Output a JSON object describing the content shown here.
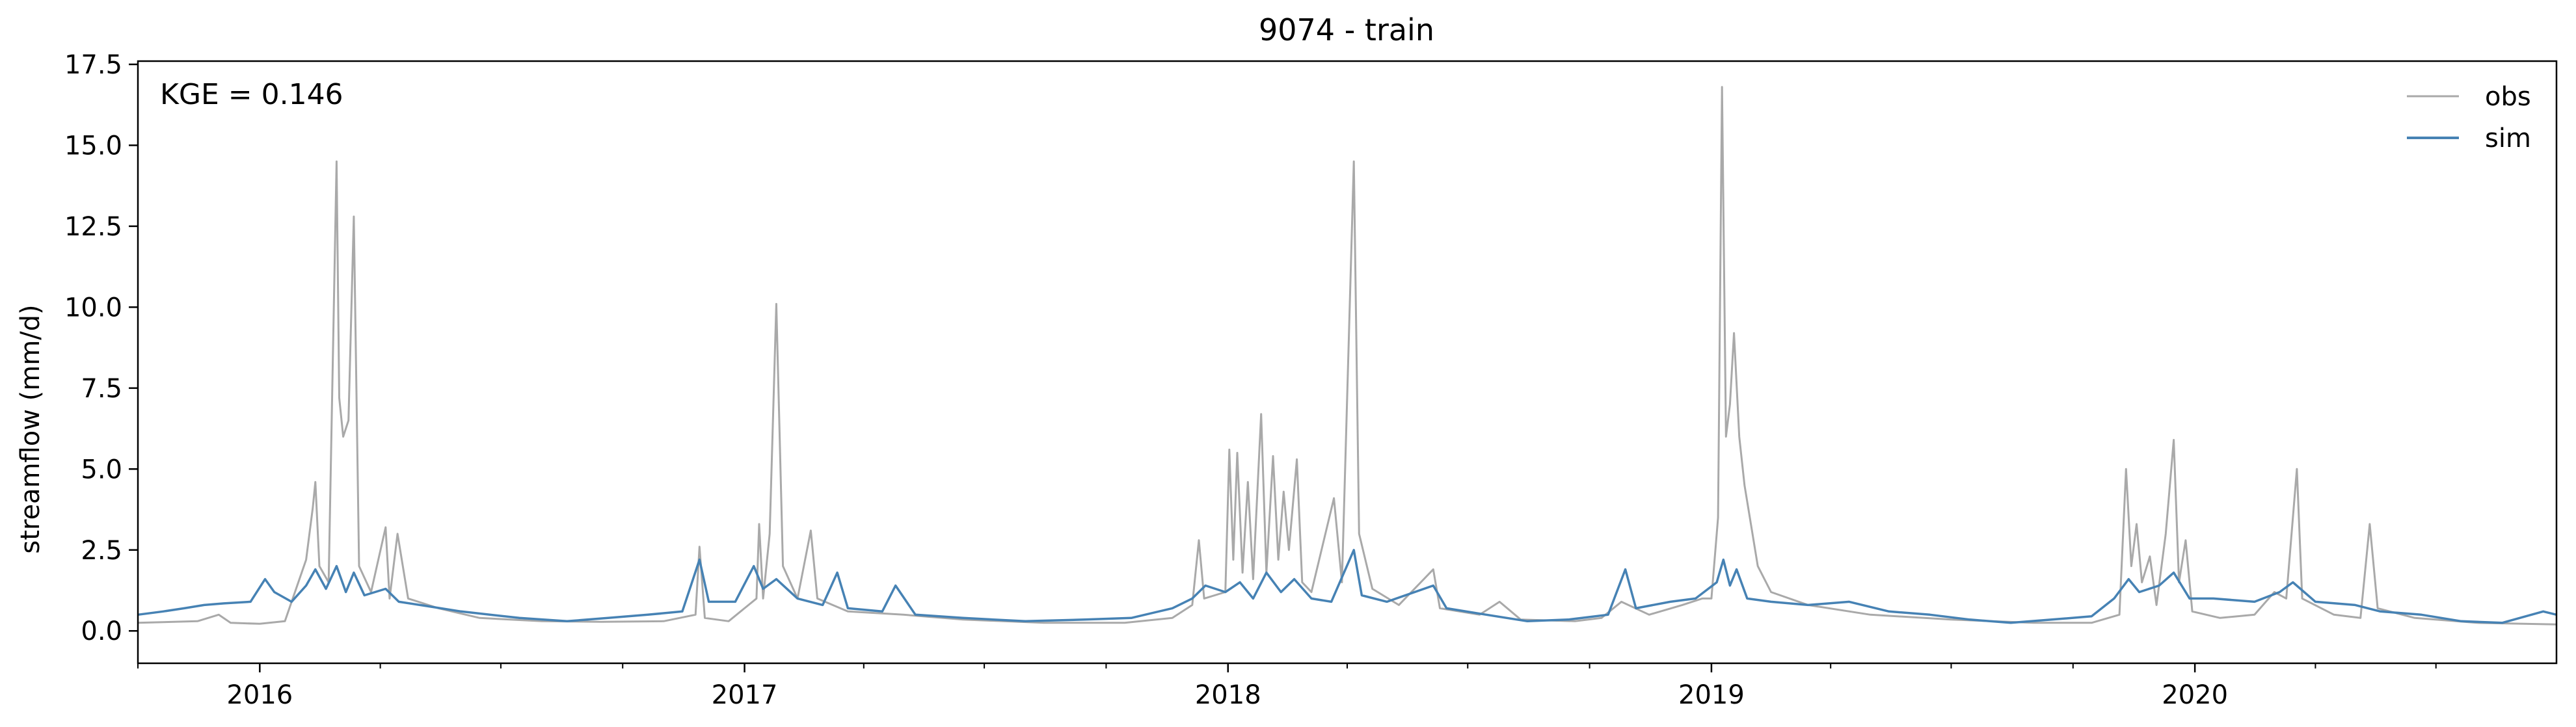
{
  "chart_data": {
    "type": "line",
    "title": "9074 - train",
    "xlabel": "",
    "ylabel": "streamflow (mm/d)",
    "annotation": "KGE = 0.146",
    "xlim": [
      "2015-10-01",
      "2020-09-30"
    ],
    "ylim": [
      -1.0,
      17.6
    ],
    "yticks": [
      0.0,
      2.5,
      5.0,
      7.5,
      10.0,
      12.5,
      15.0,
      17.5
    ],
    "ytick_labels": [
      "0.0",
      "2.5",
      "5.0",
      "7.5",
      "10.0",
      "12.5",
      "15.0",
      "17.5"
    ],
    "xticks": [
      "2016-01-01",
      "2017-01-01",
      "2018-01-01",
      "2019-01-01",
      "2020-01-01"
    ],
    "xtick_labels": [
      "2016",
      "2017",
      "2018",
      "2019",
      "2020"
    ],
    "grid": false,
    "legend_position": "top-right",
    "series": [
      {
        "name": "obs",
        "color": "#a9a9a9",
        "points": [
          [
            "2015-10-01",
            0.25
          ],
          [
            "2015-11-15",
            0.3
          ],
          [
            "2015-12-01",
            0.5
          ],
          [
            "2015-12-10",
            0.25
          ],
          [
            "2016-01-01",
            0.22
          ],
          [
            "2016-01-20",
            0.3
          ],
          [
            "2016-02-05",
            2.2
          ],
          [
            "2016-02-10",
            3.8
          ],
          [
            "2016-02-12",
            4.6
          ],
          [
            "2016-02-15",
            2.0
          ],
          [
            "2016-02-22",
            1.5
          ],
          [
            "2016-02-28",
            14.5
          ],
          [
            "2016-03-01",
            7.2
          ],
          [
            "2016-03-04",
            6.0
          ],
          [
            "2016-03-08",
            6.5
          ],
          [
            "2016-03-12",
            12.8
          ],
          [
            "2016-03-16",
            2.0
          ],
          [
            "2016-03-25",
            1.2
          ],
          [
            "2016-04-05",
            3.2
          ],
          [
            "2016-04-08",
            1.0
          ],
          [
            "2016-04-14",
            3.0
          ],
          [
            "2016-04-22",
            1.0
          ],
          [
            "2016-05-15",
            0.7
          ],
          [
            "2016-06-15",
            0.4
          ],
          [
            "2016-08-01",
            0.3
          ],
          [
            "2016-09-15",
            0.28
          ],
          [
            "2016-11-01",
            0.3
          ],
          [
            "2016-11-25",
            0.5
          ],
          [
            "2016-11-28",
            2.6
          ],
          [
            "2016-12-02",
            0.4
          ],
          [
            "2016-12-20",
            0.3
          ],
          [
            "2017-01-10",
            1.0
          ],
          [
            "2017-01-12",
            3.3
          ],
          [
            "2017-01-15",
            1.0
          ],
          [
            "2017-01-20",
            3.0
          ],
          [
            "2017-01-25",
            10.1
          ],
          [
            "2017-01-30",
            2.0
          ],
          [
            "2017-02-10",
            1.0
          ],
          [
            "2017-02-20",
            3.1
          ],
          [
            "2017-02-25",
            1.0
          ],
          [
            "2017-03-20",
            0.6
          ],
          [
            "2017-05-01",
            0.5
          ],
          [
            "2017-06-15",
            0.35
          ],
          [
            "2017-08-15",
            0.25
          ],
          [
            "2017-10-15",
            0.25
          ],
          [
            "2017-11-20",
            0.4
          ],
          [
            "2017-12-05",
            0.8
          ],
          [
            "2017-12-10",
            2.8
          ],
          [
            "2017-12-14",
            1.0
          ],
          [
            "2017-12-30",
            1.2
          ],
          [
            "2018-01-02",
            5.6
          ],
          [
            "2018-01-05",
            2.2
          ],
          [
            "2018-01-08",
            5.5
          ],
          [
            "2018-01-12",
            1.8
          ],
          [
            "2018-01-16",
            4.6
          ],
          [
            "2018-01-20",
            1.6
          ],
          [
            "2018-01-26",
            6.7
          ],
          [
            "2018-01-30",
            1.8
          ],
          [
            "2018-02-04",
            5.4
          ],
          [
            "2018-02-08",
            2.2
          ],
          [
            "2018-02-12",
            4.3
          ],
          [
            "2018-02-16",
            2.5
          ],
          [
            "2018-02-22",
            5.3
          ],
          [
            "2018-02-26",
            1.5
          ],
          [
            "2018-03-05",
            1.2
          ],
          [
            "2018-03-22",
            4.1
          ],
          [
            "2018-03-28",
            1.5
          ],
          [
            "2018-04-06",
            14.5
          ],
          [
            "2018-04-10",
            3.0
          ],
          [
            "2018-04-20",
            1.3
          ],
          [
            "2018-05-10",
            0.8
          ],
          [
            "2018-06-05",
            1.9
          ],
          [
            "2018-06-10",
            0.7
          ],
          [
            "2018-07-10",
            0.5
          ],
          [
            "2018-07-25",
            0.9
          ],
          [
            "2018-08-10",
            0.35
          ],
          [
            "2018-09-20",
            0.3
          ],
          [
            "2018-10-10",
            0.4
          ],
          [
            "2018-10-25",
            0.9
          ],
          [
            "2018-11-15",
            0.5
          ],
          [
            "2018-12-10",
            0.8
          ],
          [
            "2018-12-25",
            1.0
          ],
          [
            "2019-01-01",
            1.0
          ],
          [
            "2019-01-06",
            3.5
          ],
          [
            "2019-01-09",
            16.8
          ],
          [
            "2019-01-12",
            6.0
          ],
          [
            "2019-01-15",
            7.0
          ],
          [
            "2019-01-18",
            9.2
          ],
          [
            "2019-01-22",
            6.0
          ],
          [
            "2019-01-26",
            4.5
          ],
          [
            "2019-02-05",
            2.0
          ],
          [
            "2019-02-15",
            1.2
          ],
          [
            "2019-03-15",
            0.8
          ],
          [
            "2019-05-01",
            0.5
          ],
          [
            "2019-07-01",
            0.35
          ],
          [
            "2019-09-01",
            0.25
          ],
          [
            "2019-10-15",
            0.25
          ],
          [
            "2019-11-05",
            0.5
          ],
          [
            "2019-11-10",
            5.0
          ],
          [
            "2019-11-14",
            2.0
          ],
          [
            "2019-11-18",
            3.3
          ],
          [
            "2019-11-22",
            1.5
          ],
          [
            "2019-11-28",
            2.3
          ],
          [
            "2019-12-03",
            0.8
          ],
          [
            "2019-12-10",
            3.0
          ],
          [
            "2019-12-16",
            5.9
          ],
          [
            "2019-12-20",
            1.5
          ],
          [
            "2019-12-25",
            2.8
          ],
          [
            "2019-12-30",
            0.6
          ],
          [
            "2020-01-20",
            0.4
          ],
          [
            "2020-02-15",
            0.5
          ],
          [
            "2020-03-01",
            1.2
          ],
          [
            "2020-03-10",
            1.0
          ],
          [
            "2020-03-18",
            5.0
          ],
          [
            "2020-03-22",
            1.0
          ],
          [
            "2020-04-15",
            0.5
          ],
          [
            "2020-05-05",
            0.4
          ],
          [
            "2020-05-12",
            3.3
          ],
          [
            "2020-05-18",
            0.7
          ],
          [
            "2020-06-15",
            0.4
          ],
          [
            "2020-08-01",
            0.25
          ],
          [
            "2020-09-30",
            0.2
          ]
        ]
      },
      {
        "name": "sim",
        "color": "#4682b4",
        "points": [
          [
            "2015-10-01",
            0.5
          ],
          [
            "2015-10-20",
            0.6
          ],
          [
            "2015-11-05",
            0.7
          ],
          [
            "2015-11-20",
            0.8
          ],
          [
            "2015-12-05",
            0.85
          ],
          [
            "2015-12-25",
            0.9
          ],
          [
            "2016-01-05",
            1.6
          ],
          [
            "2016-01-12",
            1.2
          ],
          [
            "2016-01-25",
            0.9
          ],
          [
            "2016-02-05",
            1.4
          ],
          [
            "2016-02-12",
            1.9
          ],
          [
            "2016-02-20",
            1.3
          ],
          [
            "2016-02-28",
            2.0
          ],
          [
            "2016-03-06",
            1.2
          ],
          [
            "2016-03-12",
            1.8
          ],
          [
            "2016-03-20",
            1.1
          ],
          [
            "2016-04-05",
            1.3
          ],
          [
            "2016-04-15",
            0.9
          ],
          [
            "2016-05-01",
            0.8
          ],
          [
            "2016-06-01",
            0.6
          ],
          [
            "2016-07-15",
            0.4
          ],
          [
            "2016-08-20",
            0.3
          ],
          [
            "2016-09-20",
            0.4
          ],
          [
            "2016-10-20",
            0.5
          ],
          [
            "2016-11-15",
            0.6
          ],
          [
            "2016-11-28",
            2.2
          ],
          [
            "2016-12-05",
            0.9
          ],
          [
            "2016-12-25",
            0.9
          ],
          [
            "2017-01-08",
            2.0
          ],
          [
            "2017-01-15",
            1.3
          ],
          [
            "2017-01-25",
            1.6
          ],
          [
            "2017-02-10",
            1.0
          ],
          [
            "2017-03-01",
            0.8
          ],
          [
            "2017-03-12",
            1.8
          ],
          [
            "2017-03-20",
            0.7
          ],
          [
            "2017-04-15",
            0.6
          ],
          [
            "2017-04-25",
            1.4
          ],
          [
            "2017-05-10",
            0.5
          ],
          [
            "2017-06-15",
            0.4
          ],
          [
            "2017-08-01",
            0.3
          ],
          [
            "2017-09-15",
            0.35
          ],
          [
            "2017-10-20",
            0.4
          ],
          [
            "2017-11-20",
            0.7
          ],
          [
            "2017-12-05",
            1.0
          ],
          [
            "2017-12-15",
            1.4
          ],
          [
            "2017-12-30",
            1.2
          ],
          [
            "2018-01-10",
            1.5
          ],
          [
            "2018-01-20",
            1.0
          ],
          [
            "2018-01-30",
            1.8
          ],
          [
            "2018-02-10",
            1.2
          ],
          [
            "2018-02-20",
            1.6
          ],
          [
            "2018-03-05",
            1.0
          ],
          [
            "2018-03-20",
            0.9
          ],
          [
            "2018-04-06",
            2.5
          ],
          [
            "2018-04-12",
            1.1
          ],
          [
            "2018-05-01",
            0.9
          ],
          [
            "2018-06-05",
            1.4
          ],
          [
            "2018-06-15",
            0.7
          ],
          [
            "2018-07-15",
            0.5
          ],
          [
            "2018-08-15",
            0.3
          ],
          [
            "2018-09-15",
            0.35
          ],
          [
            "2018-10-15",
            0.5
          ],
          [
            "2018-10-28",
            1.9
          ],
          [
            "2018-11-05",
            0.7
          ],
          [
            "2018-12-01",
            0.9
          ],
          [
            "2018-12-20",
            1.0
          ],
          [
            "2019-01-05",
            1.5
          ],
          [
            "2019-01-10",
            2.2
          ],
          [
            "2019-01-15",
            1.4
          ],
          [
            "2019-01-20",
            1.9
          ],
          [
            "2019-01-28",
            1.0
          ],
          [
            "2019-02-15",
            0.9
          ],
          [
            "2019-03-15",
            0.8
          ],
          [
            "2019-04-15",
            0.9
          ],
          [
            "2019-05-15",
            0.6
          ],
          [
            "2019-06-15",
            0.5
          ],
          [
            "2019-07-15",
            0.35
          ],
          [
            "2019-08-15",
            0.25
          ],
          [
            "2019-09-15",
            0.35
          ],
          [
            "2019-10-15",
            0.45
          ],
          [
            "2019-11-01",
            1.0
          ],
          [
            "2019-11-12",
            1.6
          ],
          [
            "2019-11-20",
            1.2
          ],
          [
            "2019-12-05",
            1.4
          ],
          [
            "2019-12-16",
            1.8
          ],
          [
            "2019-12-28",
            1.0
          ],
          [
            "2020-01-15",
            1.0
          ],
          [
            "2020-02-15",
            0.9
          ],
          [
            "2020-03-05",
            1.2
          ],
          [
            "2020-03-15",
            1.5
          ],
          [
            "2020-04-01",
            0.9
          ],
          [
            "2020-05-01",
            0.8
          ],
          [
            "2020-05-20",
            0.6
          ],
          [
            "2020-06-20",
            0.5
          ],
          [
            "2020-07-20",
            0.3
          ],
          [
            "2020-08-20",
            0.25
          ],
          [
            "2020-09-20",
            0.6
          ],
          [
            "2020-09-30",
            0.5
          ]
        ]
      }
    ]
  }
}
